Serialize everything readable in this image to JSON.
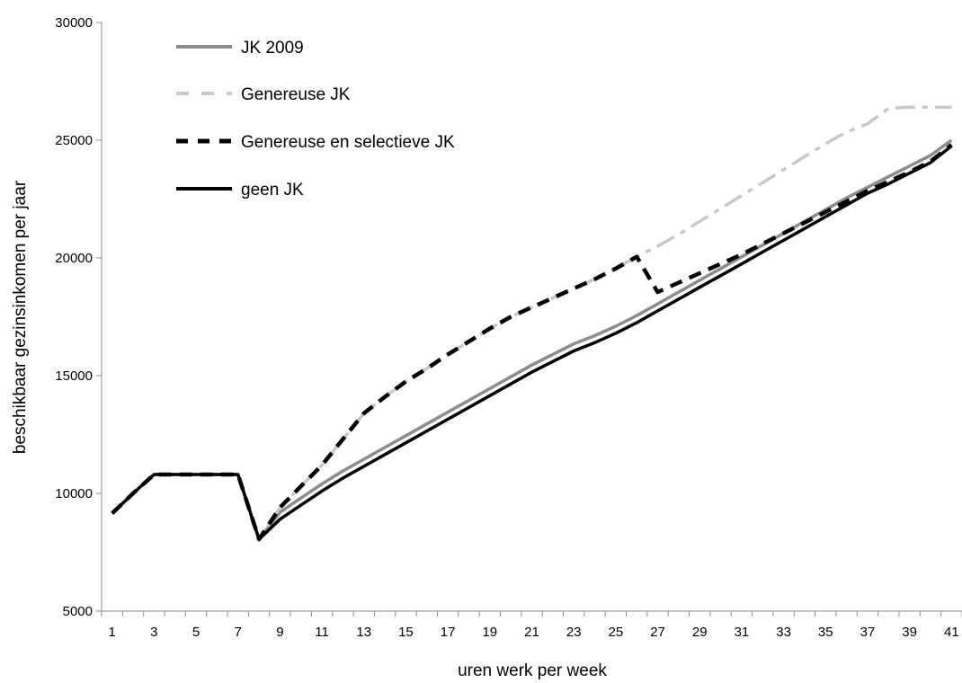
{
  "chart_data": {
    "type": "line",
    "xlabel": "uren werk per week",
    "ylabel": "beschikbaar gezinsinkomen per jaar",
    "x": [
      1,
      2,
      3,
      4,
      5,
      6,
      7,
      8,
      9,
      10,
      11,
      12,
      13,
      14,
      15,
      16,
      17,
      18,
      19,
      20,
      21,
      22,
      23,
      24,
      25,
      26,
      27,
      28,
      29,
      30,
      31,
      32,
      33,
      34,
      35,
      36,
      37,
      38,
      39,
      40,
      41
    ],
    "xticks": [
      1,
      3,
      5,
      7,
      9,
      11,
      13,
      15,
      17,
      19,
      21,
      23,
      25,
      27,
      29,
      31,
      33,
      35,
      37,
      39,
      41
    ],
    "yticks": [
      5000,
      10000,
      15000,
      20000,
      25000,
      30000
    ],
    "ylim": [
      5000,
      30000
    ],
    "xlim": [
      0.5,
      41.5
    ],
    "grid": false,
    "legend_position": "top-left",
    "series": [
      {
        "name": "JK 2009",
        "color": "#8c8c8c",
        "style": "solid",
        "values": [
          9150,
          10000,
          10800,
          10800,
          10800,
          10800,
          10800,
          8050,
          9200,
          9800,
          10400,
          10950,
          11450,
          11950,
          12450,
          12950,
          13450,
          13950,
          14450,
          14950,
          15450,
          15900,
          16350,
          16700,
          17100,
          17550,
          18050,
          18550,
          19050,
          19550,
          20050,
          20550,
          21050,
          21550,
          22050,
          22550,
          23000,
          23450,
          23900,
          24350,
          25000
        ]
      },
      {
        "name": "Genereuse JK",
        "color": "#c8c8c8",
        "style": "dashdot",
        "values": [
          9150,
          10000,
          10800,
          10800,
          10800,
          10800,
          10800,
          8050,
          9400,
          10300,
          11200,
          12300,
          13400,
          14100,
          14750,
          15300,
          15900,
          16450,
          17000,
          17500,
          17900,
          18300,
          18700,
          19100,
          19550,
          20050,
          20500,
          21000,
          21550,
          22100,
          22650,
          23200,
          23750,
          24300,
          24850,
          25350,
          25700,
          26350,
          26400,
          26400,
          26400
        ]
      },
      {
        "name": "Genereuse en selectieve JK",
        "color": "#000000",
        "style": "dashed",
        "values": [
          9150,
          10000,
          10800,
          10800,
          10800,
          10800,
          10800,
          8050,
          9400,
          10300,
          11200,
          12300,
          13400,
          14100,
          14750,
          15300,
          15900,
          16450,
          17000,
          17500,
          17900,
          18300,
          18700,
          19100,
          19550,
          20050,
          18550,
          18950,
          19350,
          19750,
          20150,
          20600,
          21050,
          21500,
          21950,
          22400,
          22850,
          23250,
          23650,
          24100,
          24800
        ]
      },
      {
        "name": "geen JK",
        "color": "#000000",
        "style": "solid",
        "values": [
          9150,
          10000,
          10800,
          10800,
          10800,
          10800,
          10800,
          8050,
          8900,
          9500,
          10100,
          10650,
          11150,
          11650,
          12150,
          12650,
          13150,
          13650,
          14150,
          14650,
          15150,
          15600,
          16050,
          16400,
          16800,
          17250,
          17750,
          18250,
          18750,
          19250,
          19750,
          20250,
          20750,
          21250,
          21750,
          22250,
          22750,
          23150,
          23600,
          24050,
          24750
        ]
      }
    ]
  }
}
